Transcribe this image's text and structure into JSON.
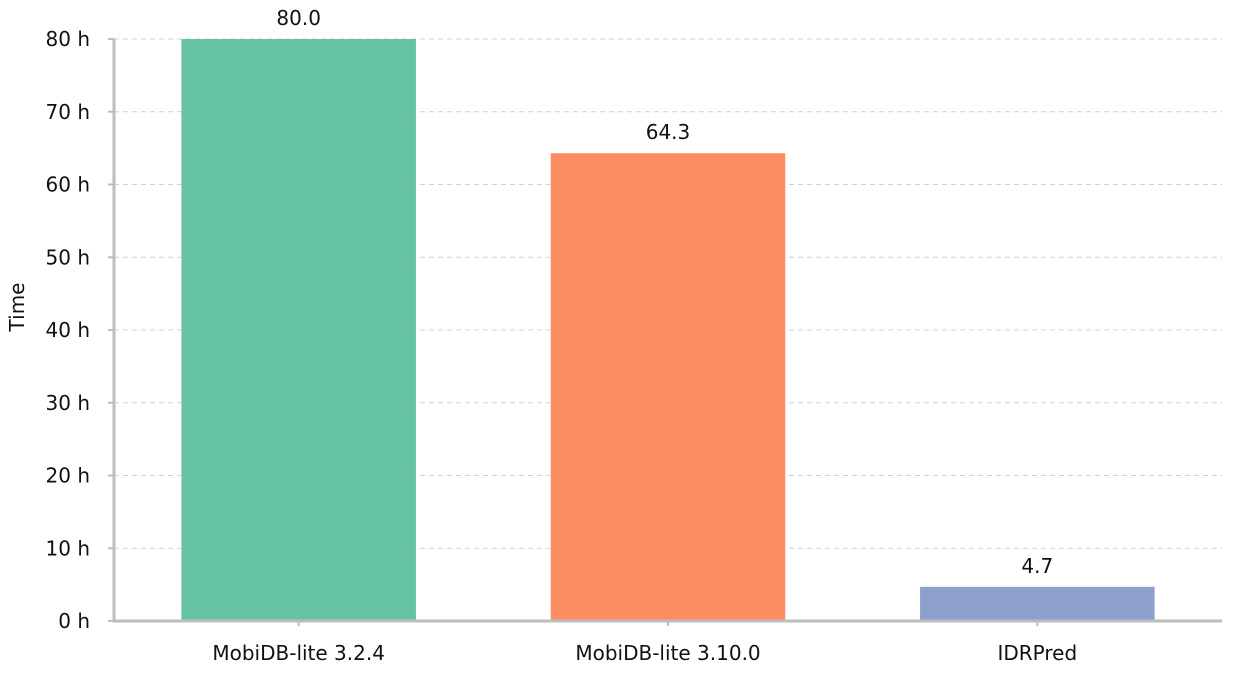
{
  "chart_data": {
    "type": "bar",
    "categories": [
      "MobiDB-lite 3.2.4",
      "MobiDB-lite 3.10.0",
      "IDRPred"
    ],
    "values": [
      80.0,
      64.3,
      4.7
    ],
    "data_labels": [
      "80.0",
      "64.3",
      "4.7"
    ],
    "colors": [
      "#66c2a5",
      "#fc8d62",
      "#8da0cb"
    ],
    "ylabel": "Time",
    "y_unit": "h",
    "ylim": [
      0,
      80
    ],
    "yticks": [
      0,
      10,
      20,
      30,
      40,
      50,
      60,
      70,
      80
    ],
    "ytick_labels": [
      "0 h",
      "10 h",
      "20 h",
      "30 h",
      "40 h",
      "50 h",
      "60 h",
      "70 h",
      "80 h"
    ],
    "grid": "horizontal-dashed",
    "legend": "none"
  }
}
